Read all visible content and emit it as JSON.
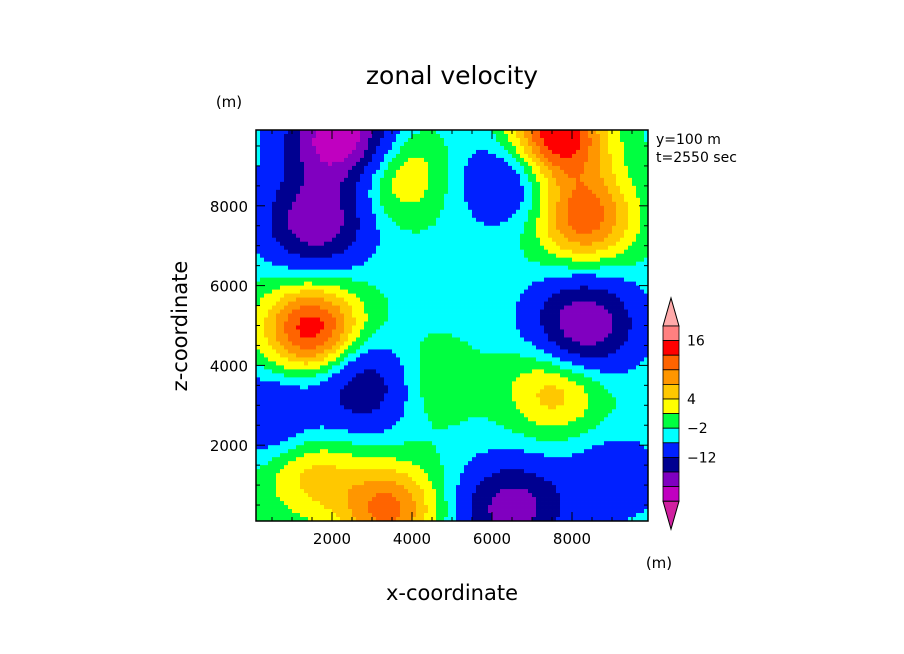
{
  "chart_data": {
    "type": "heatmap",
    "title": "zonal velocity",
    "xlabel": "x-coordinate",
    "ylabel": "z-coordinate",
    "x_unit": "(m)",
    "y_unit": "(m)",
    "colorbar_unit": "(m)",
    "annotations": [
      "y=100 m",
      "t=2550 sec"
    ],
    "xlim": [
      100,
      9900
    ],
    "ylim": [
      100,
      9900
    ],
    "x_ticks": [
      2000,
      4000,
      6000,
      8000
    ],
    "y_ticks": [
      2000,
      4000,
      6000,
      8000
    ],
    "x_tick_labels": [
      "2000",
      "4000",
      "6000",
      "8000"
    ],
    "y_tick_labels": [
      "2000",
      "4000",
      "6000",
      "8000"
    ],
    "colorbar": {
      "labels": [
        "16",
        "4",
        "−2",
        "−12"
      ],
      "levels": [
        -22,
        -17,
        -12,
        -7,
        -2,
        1,
        4,
        7,
        10,
        13,
        16,
        19
      ],
      "colors": [
        "#d020a0",
        "#c000c0",
        "#8000c0",
        "#000090",
        "#0020ff",
        "#00ffff",
        "#00ff40",
        "#ffff00",
        "#ffc800",
        "#ff9600",
        "#ff6400",
        "#ff0000",
        "#ff8080",
        "#ffaaaa"
      ]
    },
    "features": [
      {
        "x": 1600,
        "z": 7600,
        "value": -16
      },
      {
        "x": 1500,
        "z": 4900,
        "value": 18
      },
      {
        "x": 2900,
        "z": 3500,
        "value": -12
      },
      {
        "x": 500,
        "z": 2700,
        "value": -8
      },
      {
        "x": 3600,
        "z": 8800,
        "value": 8
      },
      {
        "x": 8300,
        "z": 7700,
        "value": 15
      },
      {
        "x": 8300,
        "z": 5000,
        "value": -17
      },
      {
        "x": 6500,
        "z": 8700,
        "value": -9
      },
      {
        "x": 7600,
        "z": 3400,
        "value": 9
      },
      {
        "x": 3400,
        "z": 400,
        "value": 14
      },
      {
        "x": 6500,
        "z": 400,
        "value": -15
      },
      {
        "x": 2200,
        "z": 9700,
        "value": -22
      },
      {
        "x": 7600,
        "z": 9700,
        "value": 20
      },
      {
        "x": 4200,
        "z": 3600,
        "value": 5
      },
      {
        "x": 9000,
        "z": 1200,
        "value": -5
      },
      {
        "x": 1400,
        "z": 1300,
        "value": 8
      }
    ]
  }
}
